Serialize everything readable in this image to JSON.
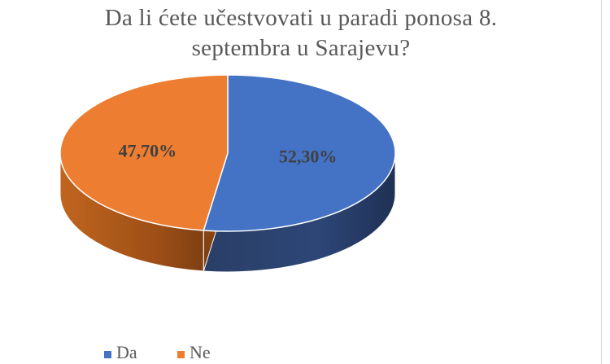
{
  "chart_data": {
    "type": "pie",
    "title_lines": [
      "Da li ćete učestvovati u paradi ponosa 8.",
      "septembra u Sarajevu?"
    ],
    "categories": [
      "Da",
      "Ne"
    ],
    "values": [
      52.3,
      47.7
    ],
    "data_labels": [
      "52,30%",
      "47,70%"
    ],
    "colors": [
      "#4472c4",
      "#ed7d31"
    ],
    "style": "3d",
    "legend_position": "bottom-left"
  }
}
